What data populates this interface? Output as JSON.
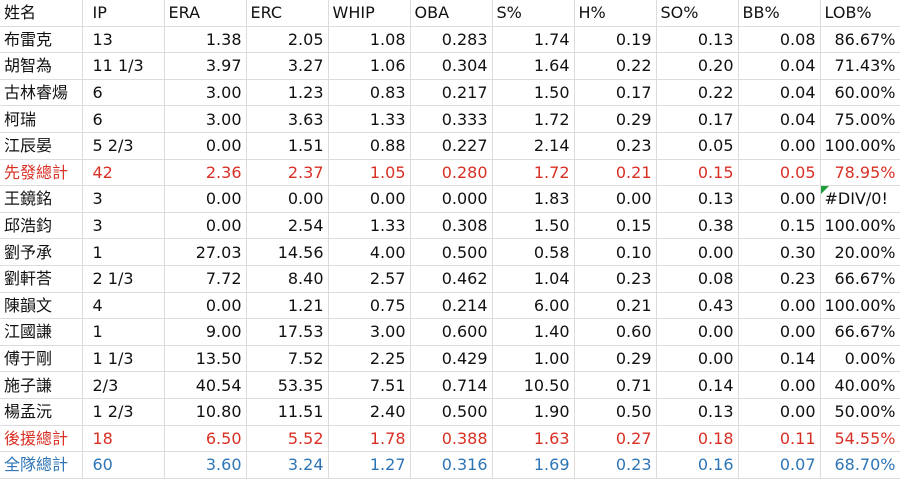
{
  "headers": [
    "姓名",
    "IP",
    "ERA",
    "ERC",
    "WHIP",
    "OBA",
    "S%",
    "H%",
    "SO%",
    "BB%",
    "LOB%"
  ],
  "rows": [
    {
      "type": "player",
      "cells": [
        "布雷克",
        "13",
        "1.38",
        "2.05",
        "1.08",
        "0.283",
        "1.74",
        "0.19",
        "0.13",
        "0.08",
        "86.67%"
      ]
    },
    {
      "type": "player",
      "cells": [
        "胡智為",
        "11 1/3",
        "3.97",
        "3.27",
        "1.06",
        "0.304",
        "1.64",
        "0.22",
        "0.20",
        "0.04",
        "71.43%"
      ]
    },
    {
      "type": "player",
      "cells": [
        "古林睿煬",
        "6",
        "3.00",
        "1.23",
        "0.83",
        "0.217",
        "1.50",
        "0.17",
        "0.22",
        "0.04",
        "60.00%"
      ]
    },
    {
      "type": "player",
      "cells": [
        "柯瑞",
        "6",
        "3.00",
        "3.63",
        "1.33",
        "0.333",
        "1.72",
        "0.29",
        "0.17",
        "0.04",
        "75.00%"
      ]
    },
    {
      "type": "player",
      "cells": [
        "江辰晏",
        "5 2/3",
        "0.00",
        "1.51",
        "0.88",
        "0.227",
        "2.14",
        "0.23",
        "0.05",
        "0.00",
        "100.00%"
      ]
    },
    {
      "type": "starter",
      "cells": [
        "先發總計",
        "42",
        "2.36",
        "2.37",
        "1.05",
        "0.280",
        "1.72",
        "0.21",
        "0.15",
        "0.05",
        "78.95%"
      ]
    },
    {
      "type": "player",
      "cells": [
        "王鏡銘",
        "3",
        "0.00",
        "0.00",
        "0.00",
        "0.000",
        "1.83",
        "0.00",
        "0.13",
        "0.00",
        "#DIV/0!"
      ]
    },
    {
      "type": "player",
      "cells": [
        "邱浩鈞",
        "3",
        "0.00",
        "2.54",
        "1.33",
        "0.308",
        "1.50",
        "0.15",
        "0.38",
        "0.15",
        "100.00%"
      ]
    },
    {
      "type": "player",
      "cells": [
        "劉予承",
        "1",
        "27.03",
        "14.56",
        "4.00",
        "0.500",
        "0.58",
        "0.10",
        "0.00",
        "0.30",
        "20.00%"
      ]
    },
    {
      "type": "player",
      "cells": [
        "劉軒荅",
        "2 1/3",
        "7.72",
        "8.40",
        "2.57",
        "0.462",
        "1.04",
        "0.23",
        "0.08",
        "0.23",
        "66.67%"
      ]
    },
    {
      "type": "player",
      "cells": [
        "陳韻文",
        "4",
        "0.00",
        "1.21",
        "0.75",
        "0.214",
        "6.00",
        "0.21",
        "0.43",
        "0.00",
        "100.00%"
      ]
    },
    {
      "type": "player",
      "cells": [
        "江國謙",
        "1",
        "9.00",
        "17.53",
        "3.00",
        "0.600",
        "1.40",
        "0.60",
        "0.00",
        "0.00",
        "66.67%"
      ]
    },
    {
      "type": "player",
      "cells": [
        "傅于剛",
        "1 1/3",
        "13.50",
        "7.52",
        "2.25",
        "0.429",
        "1.00",
        "0.29",
        "0.00",
        "0.14",
        "0.00%"
      ]
    },
    {
      "type": "player",
      "cells": [
        "施子謙",
        "2/3",
        "40.54",
        "53.35",
        "7.51",
        "0.714",
        "10.50",
        "0.71",
        "0.14",
        "0.00",
        "40.00%"
      ]
    },
    {
      "type": "player",
      "cells": [
        "楊孟沅",
        "1 2/3",
        "10.80",
        "11.51",
        "2.40",
        "0.500",
        "1.90",
        "0.50",
        "0.13",
        "0.00",
        "50.00%"
      ]
    },
    {
      "type": "reliever",
      "cells": [
        "後援總計",
        "18",
        "6.50",
        "5.52",
        "1.78",
        "0.388",
        "1.63",
        "0.27",
        "0.18",
        "0.11",
        "54.55%"
      ]
    },
    {
      "type": "team",
      "cells": [
        "全隊總計",
        "60",
        "3.60",
        "3.24",
        "1.27",
        "0.316",
        "1.69",
        "0.23",
        "0.16",
        "0.07",
        "68.70%"
      ]
    }
  ],
  "colors": {
    "total_red": "#d93025",
    "total_blue": "#2e75b6",
    "comment_marker": "#1e9e3a",
    "grid": "#dcdcdc"
  }
}
